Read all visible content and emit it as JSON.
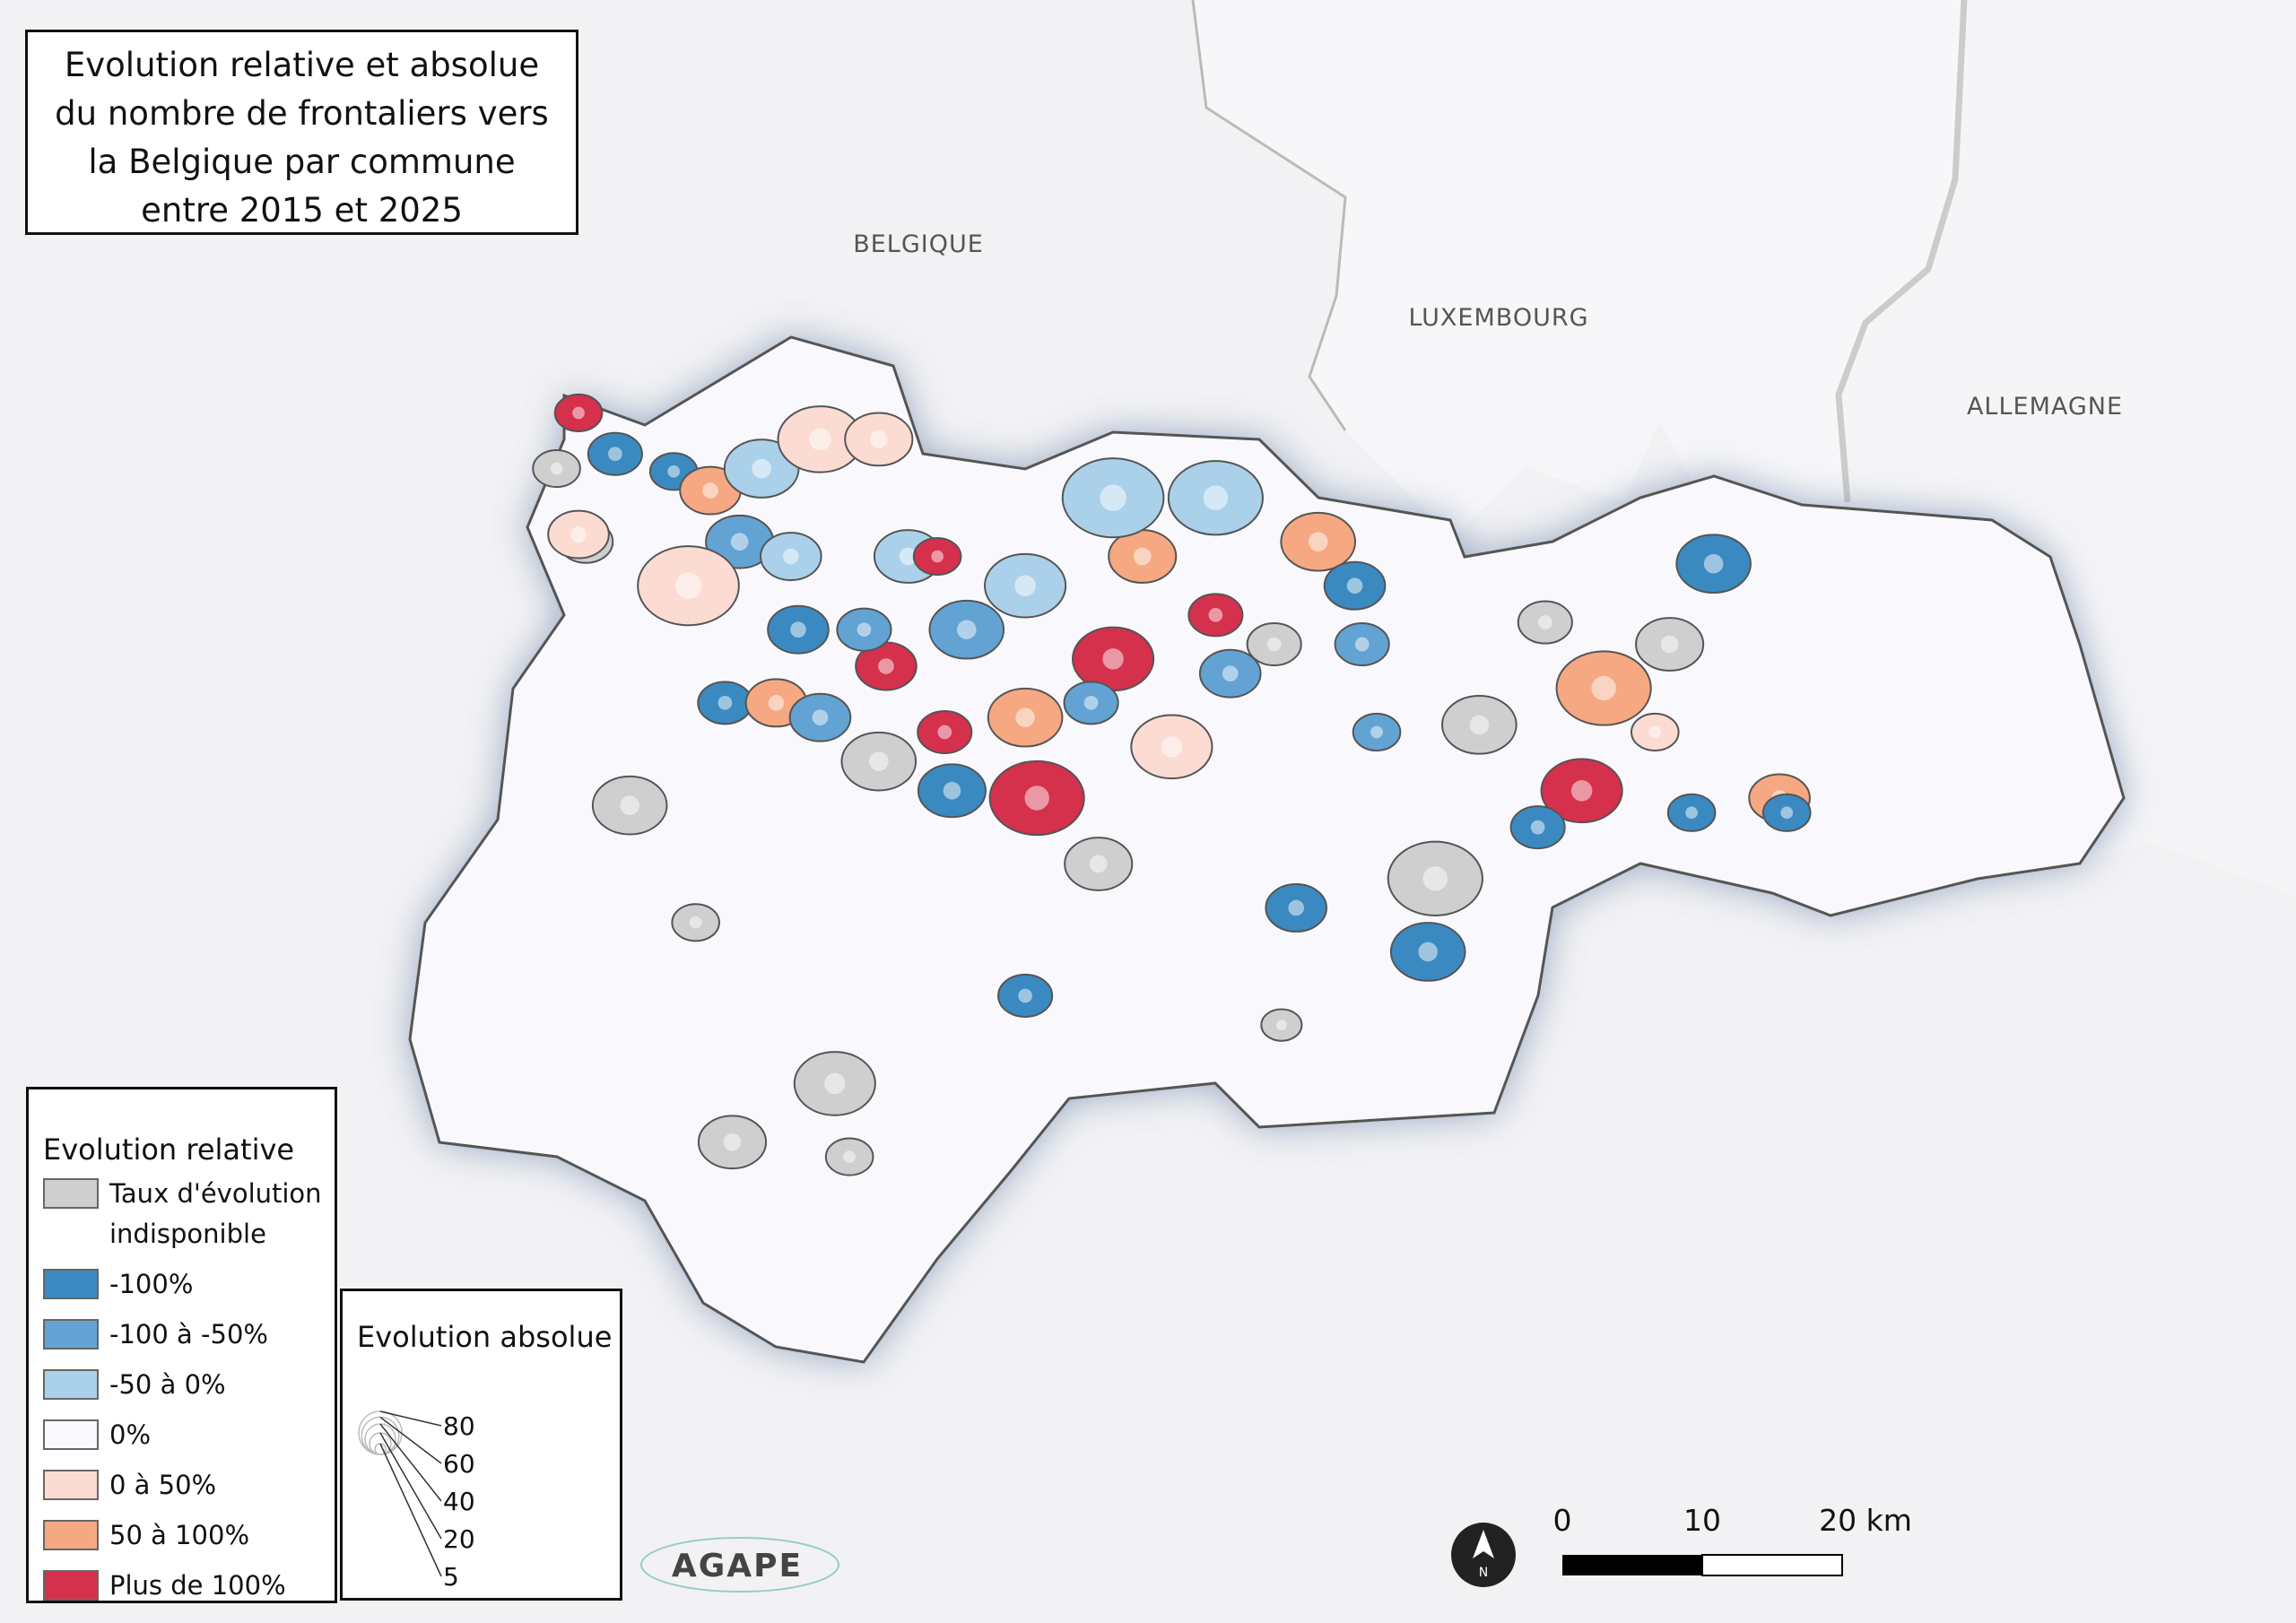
{
  "title": "Evolution relative et absolue du nombre de frontaliers vers la Belgique par commune entre 2015 et 2025",
  "countries": [
    "BELGIQUE",
    "LUXEMBOURG",
    "ALLEMAGNE"
  ],
  "legend_relative": {
    "title": "Evolution relative",
    "items": [
      {
        "label": "Taux d'évolution indisponible",
        "color": "#cfcfcf"
      },
      {
        "label": "-100%",
        "color": "#3a8ac1"
      },
      {
        "label": "-100 à -50%",
        "color": "#62a3d4"
      },
      {
        "label": "-50 à 0%",
        "color": "#abd0ea"
      },
      {
        "label": "0%",
        "color": "#f9f9fd"
      },
      {
        "label": "0 à 50%",
        "color": "#fcdcd2"
      },
      {
        "label": "50 à 100%",
        "color": "#f5a881"
      },
      {
        "label": "Plus de 100%",
        "color": "#d5304c"
      }
    ]
  },
  "legend_absolute": {
    "title": "Evolution absolue",
    "sizes": [
      80,
      60,
      40,
      20,
      5
    ]
  },
  "scale_bar": {
    "labels": [
      "0",
      "10",
      "20 km"
    ]
  },
  "north": "N",
  "logo": "AGAPE"
}
